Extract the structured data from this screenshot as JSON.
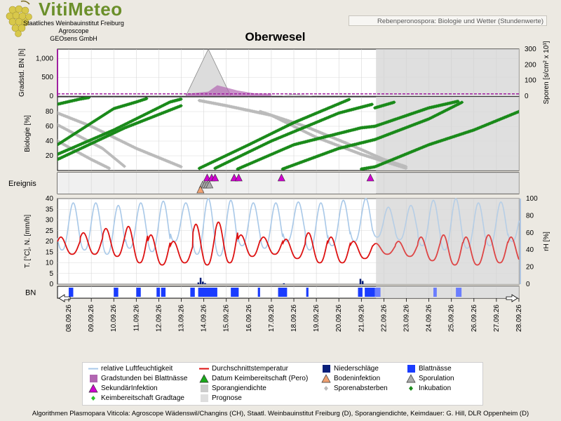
{
  "header": {
    "brand": "VitiMeteo",
    "org_line1": "Staatliches Weinbauinstitut Freiburg",
    "org_line2": "Agroscope",
    "org_line3": "GEOsens GmbH",
    "subtitle_box": "Rebenperonospora: Biologie und Wetter (Stundenwerte)",
    "station": "Oberwesel"
  },
  "footer": "Algorithmen Plasmopara Viticola: Agroscope Wädenswil/Changins (CH), Staatl. Weinbauinstitut Freiburg (D), Sporangiendichte, Keimdauer: G. Hill, DLR Oppenheim (D)",
  "colors": {
    "humidity": "#a8c8e8",
    "temperature": "#dd1111",
    "rain": "#0a1f7a",
    "wetness": "#1a3cff",
    "gradstunden": "#b266b2",
    "incubation": "#1a8a1a",
    "keimbereitschaft": "#2ec42e",
    "sporangien": "#c8c8c8",
    "spore_death": "#bbbbbb",
    "sekundaer": "#d000d0",
    "boden": "#f0a070",
    "sporulation": "#aaaaaa",
    "prognose": "#d9d9d9"
  },
  "chart_data": {
    "type": "line",
    "x_dates": [
      "08.09.26",
      "09.09.26",
      "10.09.26",
      "11.09.26",
      "12.09.26",
      "13.09.26",
      "14.09.26",
      "15.09.26",
      "16.09.26",
      "17.09.26",
      "18.09.26",
      "19.09.26",
      "20.09.26",
      "21.09.26",
      "22.09.26",
      "23.09.26",
      "24.09.26",
      "25.09.26",
      "26.09.26",
      "27.09.26",
      "28.09.26"
    ],
    "x_start": 7.5,
    "x_end": 28.0,
    "forecast_start": 21.65,
    "panels": {
      "sporangien": {
        "ylabel": "Gradstd. BN [h]",
        "ylabel_right": "Sporen [s/cm² x 10³]",
        "yticks_left": [
          "0",
          "500",
          "1,000"
        ],
        "yticks_left_values": [
          0,
          500,
          1000
        ],
        "ylim_left": [
          0,
          1250
        ],
        "yticks_right": [
          "0",
          "100",
          "200",
          "300"
        ],
        "yticks_right_values": [
          0,
          100,
          200,
          300
        ],
        "ylim_right": [
          0,
          300
        ],
        "gradstunden_baseline": 60,
        "gradstunden_peak": [
          [
            13.2,
            60
          ],
          [
            14.2,
            120
          ],
          [
            14.6,
            290
          ],
          [
            15.5,
            150
          ],
          [
            16.2,
            80
          ],
          [
            17.0,
            60
          ]
        ],
        "sporangien_triangle": [
          [
            13.2,
            0
          ],
          [
            14.2,
            300
          ],
          [
            15.2,
            0
          ]
        ],
        "sporangien_small": [
          [
            17.5,
            0
          ],
          [
            18.0,
            12
          ],
          [
            18.8,
            0
          ]
        ]
      },
      "biologie": {
        "ylabel": "Biologie [%]",
        "yticks": [
          "20",
          "40",
          "60",
          "80"
        ],
        "yticks_values": [
          20,
          40,
          60,
          80
        ],
        "ylim": [
          0,
          100
        ],
        "incubation_series": [
          [
            [
              7.5,
              90
            ],
            [
              8.5,
              97
            ],
            [
              8.9,
              99
            ]
          ],
          [
            [
              7.5,
              35
            ],
            [
              10.0,
              84
            ],
            [
              11.0,
              93
            ],
            [
              11.5,
              98
            ]
          ],
          [
            [
              7.5,
              22
            ],
            [
              10.0,
              55
            ],
            [
              12.5,
              93
            ],
            [
              13.0,
              97
            ]
          ],
          [
            [
              7.5,
              15
            ],
            [
              10.5,
              58
            ],
            [
              13.0,
              88
            ]
          ],
          [
            [
              13.8,
              3
            ],
            [
              16.0,
              35
            ],
            [
              18.0,
              65
            ],
            [
              20.5,
              97
            ]
          ],
          [
            [
              14.5,
              3
            ],
            [
              17.0,
              40
            ],
            [
              20.0,
              78
            ],
            [
              21.5,
              90
            ]
          ],
          [
            [
              15.5,
              2
            ],
            [
              18.0,
              35
            ],
            [
              21.0,
              58
            ],
            [
              21.6,
              60
            ]
          ],
          [
            [
              21.6,
              60
            ],
            [
              24.0,
              85
            ],
            [
              25.3,
              94
            ]
          ],
          [
            [
              21.6,
              85
            ],
            [
              22.5,
              93
            ]
          ],
          [
            [
              17.5,
              2
            ],
            [
              20.0,
              30
            ],
            [
              21.6,
              42
            ]
          ],
          [
            [
              21.6,
              42
            ],
            [
              24.0,
              70
            ],
            [
              25.5,
              93
            ]
          ],
          [
            [
              21.0,
              2
            ],
            [
              21.6,
              5
            ]
          ],
          [
            [
              21.6,
              5
            ],
            [
              24.0,
              35
            ],
            [
              26.0,
              55
            ],
            [
              28.0,
              80
            ]
          ]
        ],
        "spore_death_series": [
          [
            [
              7.5,
              78
            ],
            [
              9.0,
              60
            ],
            [
              11.0,
              30
            ],
            [
              13.0,
              5
            ]
          ],
          [
            [
              7.5,
              62
            ],
            [
              9.5,
              30
            ],
            [
              10.5,
              5
            ]
          ],
          [
            [
              7.5,
              40
            ],
            [
              9.0,
              15
            ],
            [
              9.8,
              3
            ]
          ],
          [
            [
              13.8,
              95
            ],
            [
              15.0,
              88
            ],
            [
              17.0,
              75
            ],
            [
              18.0,
              60
            ],
            [
              19.0,
              45
            ],
            [
              21.0,
              22
            ],
            [
              23.0,
              3
            ]
          ],
          [
            [
              16.5,
              80
            ],
            [
              18.5,
              60
            ],
            [
              20.5,
              35
            ],
            [
              22.0,
              15
            ],
            [
              23.0,
              5
            ]
          ]
        ]
      },
      "ereignis": {
        "label": "Ereignis",
        "sekundaer_x": [
          14.15,
          14.35,
          14.5,
          15.35,
          15.55,
          17.45,
          21.4
        ],
        "sporulation_x": [
          13.95,
          14.05,
          14.15,
          14.25
        ],
        "boden_x": [
          13.85
        ]
      },
      "wetter": {
        "ylabel": "T. [°C], N. [mm/h]",
        "ylabel_right": "rH [%]",
        "yticks_left": [
          "0",
          "5",
          "10",
          "15",
          "20",
          "25",
          "30",
          "35",
          "40"
        ],
        "yticks_left_values": [
          0,
          5,
          10,
          15,
          20,
          25,
          30,
          35,
          40
        ],
        "ylim_left": [
          0,
          40
        ],
        "yticks_right": [
          "0",
          "20",
          "40",
          "60",
          "80",
          "100"
        ],
        "yticks_right_values": [
          0,
          20,
          40,
          60,
          80,
          100
        ],
        "ylim_right": [
          0,
          100
        ],
        "temp_min": [
          14,
          14,
          13,
          10,
          9,
          10,
          9,
          10,
          13,
          14,
          12,
          10,
          10,
          12,
          14,
          13,
          11,
          9,
          9,
          10,
          10
        ],
        "temp_max": [
          22,
          24,
          26,
          27,
          23,
          20,
          28,
          29,
          23,
          22,
          21,
          24,
          22,
          20,
          19,
          20,
          22,
          23,
          22,
          23,
          22
        ],
        "rh_max": [
          95,
          95,
          92,
          95,
          97,
          95,
          100,
          98,
          95,
          95,
          96,
          95,
          98,
          100,
          90,
          92,
          98,
          100,
          95,
          96,
          92
        ],
        "rh_min": [
          40,
          40,
          35,
          42,
          38,
          50,
          35,
          33,
          45,
          42,
          50,
          40,
          45,
          50,
          55,
          52,
          45,
          40,
          42,
          45,
          50
        ],
        "rain": [
          [
            13.75,
            0.8
          ],
          [
            13.85,
            3.0
          ],
          [
            13.95,
            1.2
          ],
          [
            14.05,
            0.5
          ],
          [
            17.55,
            0.4
          ],
          [
            20.95,
            2.5
          ],
          [
            21.05,
            1.5
          ]
        ]
      },
      "blattnaesse": {
        "label": "BN",
        "periods": [
          [
            8.0,
            8.2
          ],
          [
            10.0,
            10.2
          ],
          [
            11.0,
            11.2
          ],
          [
            11.9,
            12.05
          ],
          [
            12.1,
            12.3
          ],
          [
            13.4,
            13.6
          ],
          [
            13.75,
            14.6
          ],
          [
            15.2,
            15.55
          ],
          [
            16.4,
            16.5
          ],
          [
            17.3,
            17.7
          ],
          [
            18.55,
            18.65
          ],
          [
            20.85,
            21.05
          ],
          [
            21.15,
            21.6
          ]
        ],
        "periods_forecast": [
          [
            21.6,
            21.85
          ],
          [
            24.2,
            24.35
          ],
          [
            25.2,
            25.45
          ]
        ]
      }
    }
  },
  "legend": [
    {
      "label": "relative Luftfeuchtigkeit",
      "symbol": "line",
      "color": "#a8c8e8"
    },
    {
      "label": "Gradstunden bei Blattnässe",
      "symbol": "square",
      "color": "#b266b2"
    },
    {
      "label": "SekundärInfektion",
      "symbol": "triangle",
      "color": "#d000d0"
    },
    {
      "label": "Keimbereitschaft Gradtage",
      "symbol": "diamond",
      "color": "#2ec42e"
    },
    {
      "label": "Durchschnittstemperatur",
      "symbol": "line",
      "color": "#dd1111"
    },
    {
      "label": "Datum Keimbereitschaft (Pero)",
      "symbol": "triangle",
      "color": "#1aaa1a"
    },
    {
      "label": "Sporangiendichte",
      "symbol": "square",
      "color": "#cccccc"
    },
    {
      "label": "Prognose",
      "symbol": "square",
      "color": "#dedede"
    },
    {
      "label": "Niederschläge",
      "symbol": "square",
      "color": "#0a1f7a"
    },
    {
      "label": "Bodeninfektion",
      "symbol": "triangle",
      "color": "#f0a070"
    },
    {
      "label": "Sporenabsterben",
      "symbol": "diamond",
      "color": "#bbbbbb"
    },
    {
      "label": "Blattnässe",
      "symbol": "square",
      "color": "#1a3cff"
    },
    {
      "label": "Sporulation",
      "symbol": "triangle",
      "color": "#aaaaaa"
    },
    {
      "label": "Inkubation",
      "symbol": "diamond",
      "color": "#1a8a1a"
    }
  ]
}
